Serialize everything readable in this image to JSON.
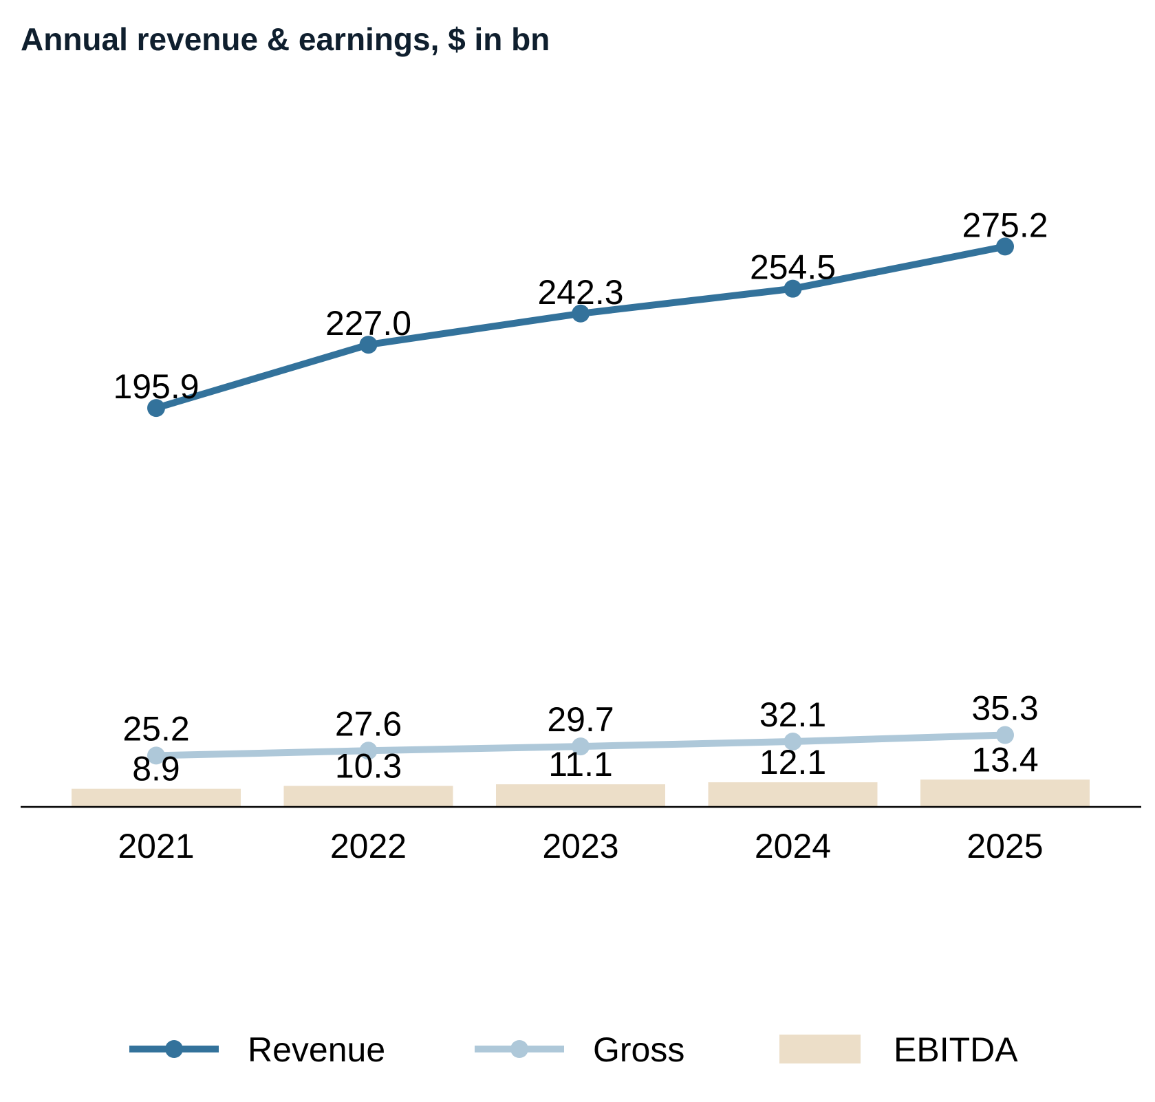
{
  "chart_data": {
    "type": "line",
    "title": "Annual revenue & earnings, $ in bn",
    "xlabel": "",
    "ylabel": "",
    "categories": [
      "2021",
      "2022",
      "2023",
      "2024",
      "2025"
    ],
    "ylim": [
      0,
      300
    ],
    "grid": false,
    "legend_position": "bottom",
    "series": [
      {
        "name": "Revenue",
        "kind": "line",
        "color": "#33729b",
        "values": [
          195.9,
          227.0,
          242.3,
          254.5,
          275.2
        ],
        "labels": [
          "195.9",
          "227.0",
          "242.3",
          "254.5",
          "275.2"
        ]
      },
      {
        "name": "Gross",
        "kind": "line",
        "color": "#aec8d9",
        "values": [
          25.2,
          27.6,
          29.7,
          32.1,
          35.3
        ],
        "labels": [
          "25.2",
          "27.6",
          "29.7",
          "32.1",
          "35.3"
        ]
      },
      {
        "name": "EBITDA",
        "kind": "bar",
        "color": "#ecdec8",
        "values": [
          8.9,
          10.3,
          11.1,
          12.1,
          13.4
        ],
        "labels": [
          "8.9",
          "10.3",
          "11.1",
          "12.1",
          "13.4"
        ]
      }
    ]
  }
}
